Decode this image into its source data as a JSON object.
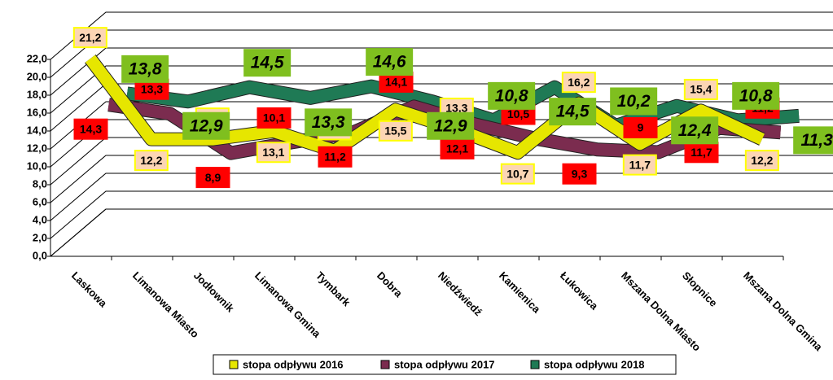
{
  "chart_data": {
    "type": "line",
    "categories": [
      "Laskowa",
      "Limanowa Miasto",
      "Jodłownik",
      "Limanowa Gmina",
      "Tymbark",
      "Dobra",
      "Niedźwiedź",
      "Kamienica",
      "Łukowica",
      "Mszana Dolna Miasto",
      "Słopnice",
      "Mszana Dolna Gmina"
    ],
    "series": [
      {
        "name": "stopa odpływu 2016",
        "color": "#e6e600",
        "label_fill": "#fcd5b4",
        "label_border": "#ffff00",
        "values": [
          21.2,
          12.2,
          12.2,
          13.1,
          10.9,
          15.5,
          13.3,
          10.7,
          16.2,
          11.7,
          15.4,
          12.2
        ],
        "value_labels": [
          "21,2",
          "12,2",
          "12,2",
          "13,1",
          "10,9",
          "15,5",
          "13,3",
          "10,7",
          "16,2",
          "11,7",
          "15,4",
          "12,2"
        ]
      },
      {
        "name": "stopa odpływu 2017",
        "color": "#7b2c4f",
        "label_fill": "#ff0000",
        "label_border": "#ff0000",
        "values": [
          14.3,
          13.3,
          8.9,
          10.1,
          11.2,
          14.1,
          12.1,
          10.5,
          9.3,
          9,
          11.7,
          11.2
        ],
        "value_labels": [
          "14,3",
          "13,3",
          "8,9",
          "10,1",
          "11,2",
          "14,1",
          "12,1",
          "10,5",
          "9,3",
          "9",
          "11,7",
          "11,2"
        ]
      },
      {
        "name": "stopa odpływu 2018",
        "color": "#1f7a55",
        "label_fill": "#7fbf1f",
        "label_border": "#7fbf1f",
        "values": [
          13.8,
          12.9,
          14.5,
          13.3,
          14.6,
          12.9,
          10.8,
          14.5,
          10.2,
          12.4,
          10.8,
          11.3
        ],
        "value_labels": [
          "13,8",
          "12,9",
          "14,5",
          "13,3",
          "14,6",
          "12,9",
          "10,8",
          "14,5",
          "10,2",
          "12,4",
          "10,8",
          "11,3"
        ]
      }
    ],
    "ylim": [
      0,
      22
    ],
    "yticks": [
      {
        "value": 0,
        "label": "0,0"
      },
      {
        "value": 2,
        "label": "2,0"
      },
      {
        "value": 4,
        "label": "4,0"
      },
      {
        "value": 6,
        "label": "6,0"
      },
      {
        "value": 8,
        "label": "8,0"
      },
      {
        "value": 10,
        "label": "10,0"
      },
      {
        "value": 12,
        "label": "12,0"
      },
      {
        "value": 14,
        "label": "14,0"
      },
      {
        "value": 16,
        "label": "16,0"
      },
      {
        "value": 18,
        "label": "18,0"
      },
      {
        "value": 20,
        "label": "20,0"
      },
      {
        "value": 22,
        "label": "22,0"
      }
    ],
    "grid": true,
    "legend": "bottom"
  }
}
